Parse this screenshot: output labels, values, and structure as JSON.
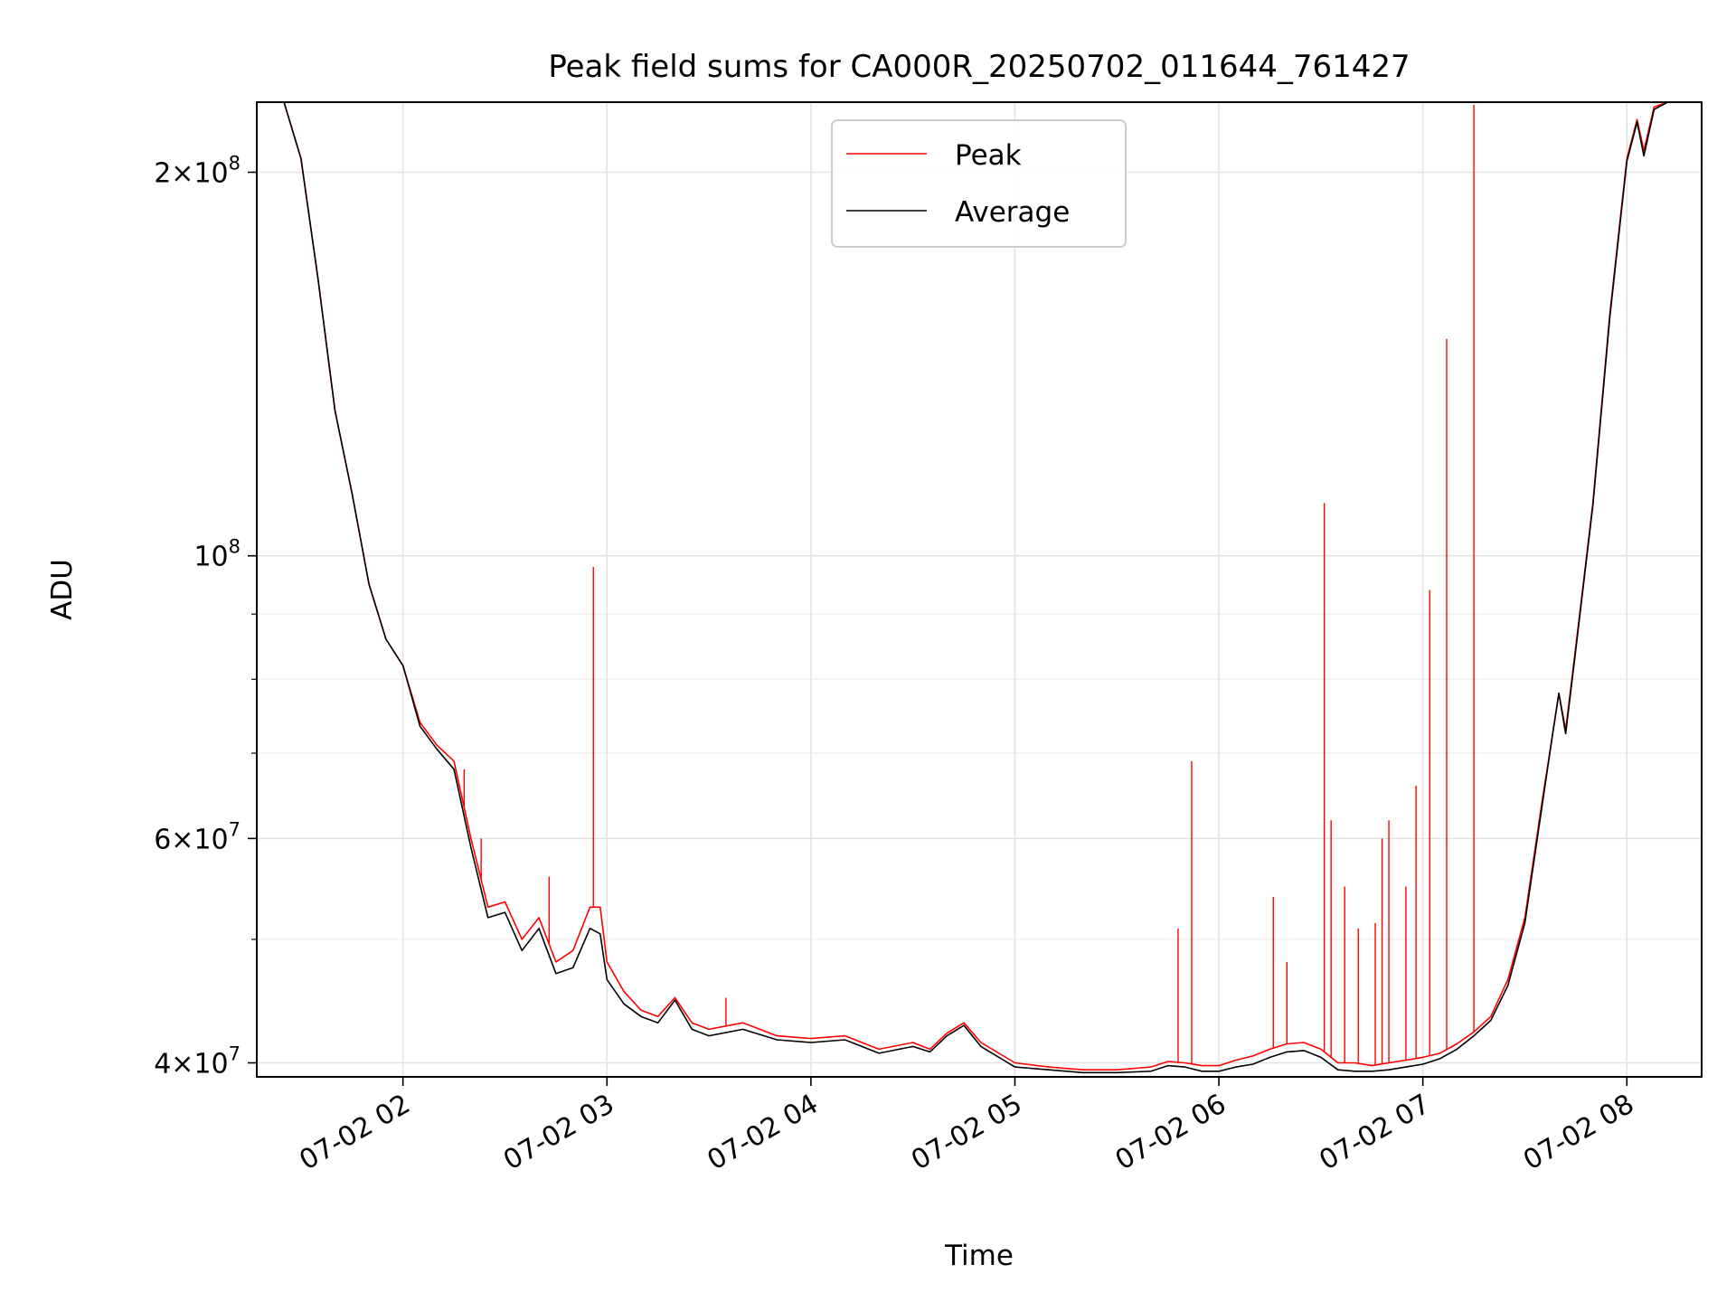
{
  "chart_data": {
    "type": "line",
    "title": "Peak field sums for CA000R_20250702_011644_761427",
    "xlabel": "Time",
    "ylabel": "ADU",
    "y_scale": "log",
    "grid": true,
    "legend_position": "upper center",
    "xlim": [
      "2025-07-02 01:17",
      "2025-07-02 08:22"
    ],
    "ylim": [
      39000000,
      227000000
    ],
    "x_ticks": [
      {
        "value": "2025-07-02 02:00",
        "label": "07-02 02"
      },
      {
        "value": "2025-07-02 03:00",
        "label": "07-02 03"
      },
      {
        "value": "2025-07-02 04:00",
        "label": "07-02 04"
      },
      {
        "value": "2025-07-02 05:00",
        "label": "07-02 05"
      },
      {
        "value": "2025-07-02 06:00",
        "label": "07-02 06"
      },
      {
        "value": "2025-07-02 07:00",
        "label": "07-02 07"
      },
      {
        "value": "2025-07-02 08:00",
        "label": "07-02 08"
      }
    ],
    "y_major_ticks": [
      {
        "value": 40000000,
        "mantissa": "4",
        "base": "10",
        "exp": "7"
      },
      {
        "value": 60000000,
        "mantissa": "6",
        "base": "10",
        "exp": "7"
      },
      {
        "value": 100000000,
        "mantissa": "",
        "base": "10",
        "exp": "8"
      },
      {
        "value": 200000000,
        "mantissa": "2",
        "base": "10",
        "exp": "8"
      }
    ],
    "y_minor_ticks": [
      50000000,
      70000000,
      80000000,
      90000000
    ],
    "series": [
      {
        "name": "Peak",
        "color": "#ff0000",
        "x": [
          "2025-07-02 01:17",
          "2025-07-02 01:25",
          "2025-07-02 01:30",
          "2025-07-02 01:35",
          "2025-07-02 01:40",
          "2025-07-02 01:45",
          "2025-07-02 01:50",
          "2025-07-02 01:55",
          "2025-07-02 02:00",
          "2025-07-02 02:05",
          "2025-07-02 02:10",
          "2025-07-02 02:15",
          "2025-07-02 02:20",
          "2025-07-02 02:25",
          "2025-07-02 02:30",
          "2025-07-02 02:35",
          "2025-07-02 02:40",
          "2025-07-02 02:45",
          "2025-07-02 02:50",
          "2025-07-02 02:55",
          "2025-07-02 02:58",
          "2025-07-02 03:00",
          "2025-07-02 03:05",
          "2025-07-02 03:10",
          "2025-07-02 03:15",
          "2025-07-02 03:20",
          "2025-07-02 03:25",
          "2025-07-02 03:30",
          "2025-07-02 03:40",
          "2025-07-02 03:50",
          "2025-07-02 04:00",
          "2025-07-02 04:10",
          "2025-07-02 04:20",
          "2025-07-02 04:30",
          "2025-07-02 04:35",
          "2025-07-02 04:40",
          "2025-07-02 04:45",
          "2025-07-02 04:50",
          "2025-07-02 05:00",
          "2025-07-02 05:10",
          "2025-07-02 05:20",
          "2025-07-02 05:30",
          "2025-07-02 05:40",
          "2025-07-02 05:45",
          "2025-07-02 05:50",
          "2025-07-02 05:55",
          "2025-07-02 06:00",
          "2025-07-02 06:05",
          "2025-07-02 06:10",
          "2025-07-02 06:15",
          "2025-07-02 06:20",
          "2025-07-02 06:25",
          "2025-07-02 06:30",
          "2025-07-02 06:35",
          "2025-07-02 06:40",
          "2025-07-02 06:45",
          "2025-07-02 06:50",
          "2025-07-02 06:55",
          "2025-07-02 07:00",
          "2025-07-02 07:05",
          "2025-07-02 07:10",
          "2025-07-02 07:15",
          "2025-07-02 07:20",
          "2025-07-02 07:25",
          "2025-07-02 07:30",
          "2025-07-02 07:35",
          "2025-07-02 07:38",
          "2025-07-02 07:40",
          "2025-07-02 07:42",
          "2025-07-02 07:45",
          "2025-07-02 07:50",
          "2025-07-02 07:55",
          "2025-07-02 08:00",
          "2025-07-02 08:03",
          "2025-07-02 08:05",
          "2025-07-02 08:08",
          "2025-07-02 08:12",
          "2025-07-02 08:22"
        ],
        "y": [
          227000000,
          227000000,
          205000000,
          165000000,
          130000000,
          112000000,
          95000000,
          86000000,
          82000000,
          74000000,
          71000000,
          69000000,
          60000000,
          53000000,
          53500000,
          50000000,
          52000000,
          48000000,
          49000000,
          53000000,
          53000000,
          48000000,
          45500000,
          44000000,
          43500000,
          45000000,
          43000000,
          42500000,
          43000000,
          42000000,
          41800000,
          42000000,
          41000000,
          41500000,
          41000000,
          42200000,
          43000000,
          41500000,
          40000000,
          39700000,
          39500000,
          39500000,
          39700000,
          40100000,
          40000000,
          39800000,
          39800000,
          40200000,
          40500000,
          41000000,
          41400000,
          41500000,
          41000000,
          40000000,
          40000000,
          39800000,
          40000000,
          40200000,
          40400000,
          40700000,
          41400000,
          42300000,
          43500000,
          46500000,
          52000000,
          64000000,
          72000000,
          78000000,
          73000000,
          85000000,
          110000000,
          155000000,
          205000000,
          220000000,
          208000000,
          225000000,
          227000000,
          227000000
        ],
        "spikes": [
          {
            "x": "2025-07-02 02:18",
            "y": 68000000
          },
          {
            "x": "2025-07-02 02:23",
            "y": 60000000
          },
          {
            "x": "2025-07-02 02:43",
            "y": 56000000
          },
          {
            "x": "2025-07-02 02:56",
            "y": 98000000
          },
          {
            "x": "2025-07-02 03:35",
            "y": 45000000
          },
          {
            "x": "2025-07-02 05:48",
            "y": 51000000
          },
          {
            "x": "2025-07-02 05:52",
            "y": 69000000
          },
          {
            "x": "2025-07-02 06:16",
            "y": 54000000
          },
          {
            "x": "2025-07-02 06:20",
            "y": 48000000
          },
          {
            "x": "2025-07-02 06:31",
            "y": 110000000
          },
          {
            "x": "2025-07-02 06:33",
            "y": 62000000
          },
          {
            "x": "2025-07-02 06:37",
            "y": 55000000
          },
          {
            "x": "2025-07-02 06:41",
            "y": 51000000
          },
          {
            "x": "2025-07-02 06:46",
            "y": 51500000
          },
          {
            "x": "2025-07-02 06:48",
            "y": 60000000
          },
          {
            "x": "2025-07-02 06:50",
            "y": 62000000
          },
          {
            "x": "2025-07-02 06:55",
            "y": 55000000
          },
          {
            "x": "2025-07-02 06:58",
            "y": 66000000
          },
          {
            "x": "2025-07-02 07:02",
            "y": 94000000
          },
          {
            "x": "2025-07-02 07:07",
            "y": 148000000
          },
          {
            "x": "2025-07-02 07:15",
            "y": 226000000
          }
        ]
      },
      {
        "name": "Average",
        "color": "#000000",
        "x": [
          "2025-07-02 01:17",
          "2025-07-02 01:25",
          "2025-07-02 01:30",
          "2025-07-02 01:35",
          "2025-07-02 01:40",
          "2025-07-02 01:45",
          "2025-07-02 01:50",
          "2025-07-02 01:55",
          "2025-07-02 02:00",
          "2025-07-02 02:05",
          "2025-07-02 02:10",
          "2025-07-02 02:15",
          "2025-07-02 02:20",
          "2025-07-02 02:25",
          "2025-07-02 02:30",
          "2025-07-02 02:35",
          "2025-07-02 02:40",
          "2025-07-02 02:45",
          "2025-07-02 02:50",
          "2025-07-02 02:55",
          "2025-07-02 02:58",
          "2025-07-02 03:00",
          "2025-07-02 03:05",
          "2025-07-02 03:10",
          "2025-07-02 03:15",
          "2025-07-02 03:20",
          "2025-07-02 03:25",
          "2025-07-02 03:30",
          "2025-07-02 03:40",
          "2025-07-02 03:50",
          "2025-07-02 04:00",
          "2025-07-02 04:10",
          "2025-07-02 04:20",
          "2025-07-02 04:30",
          "2025-07-02 04:35",
          "2025-07-02 04:40",
          "2025-07-02 04:45",
          "2025-07-02 04:50",
          "2025-07-02 05:00",
          "2025-07-02 05:10",
          "2025-07-02 05:20",
          "2025-07-02 05:30",
          "2025-07-02 05:40",
          "2025-07-02 05:45",
          "2025-07-02 05:50",
          "2025-07-02 05:55",
          "2025-07-02 06:00",
          "2025-07-02 06:05",
          "2025-07-02 06:10",
          "2025-07-02 06:15",
          "2025-07-02 06:20",
          "2025-07-02 06:25",
          "2025-07-02 06:30",
          "2025-07-02 06:35",
          "2025-07-02 06:40",
          "2025-07-02 06:45",
          "2025-07-02 06:50",
          "2025-07-02 06:55",
          "2025-07-02 07:00",
          "2025-07-02 07:05",
          "2025-07-02 07:10",
          "2025-07-02 07:15",
          "2025-07-02 07:20",
          "2025-07-02 07:25",
          "2025-07-02 07:30",
          "2025-07-02 07:35",
          "2025-07-02 07:38",
          "2025-07-02 07:40",
          "2025-07-02 07:42",
          "2025-07-02 07:45",
          "2025-07-02 07:50",
          "2025-07-02 07:55",
          "2025-07-02 08:00",
          "2025-07-02 08:03",
          "2025-07-02 08:05",
          "2025-07-02 08:08",
          "2025-07-02 08:12",
          "2025-07-02 08:22"
        ],
        "y": [
          227000000,
          227000000,
          205000000,
          165000000,
          130000000,
          112000000,
          95000000,
          86000000,
          82000000,
          73500000,
          70500000,
          68000000,
          59000000,
          52000000,
          52500000,
          49000000,
          51000000,
          47000000,
          47500000,
          51000000,
          50500000,
          46500000,
          44500000,
          43500000,
          43000000,
          44800000,
          42500000,
          42000000,
          42500000,
          41700000,
          41500000,
          41700000,
          40700000,
          41200000,
          40800000,
          42000000,
          42800000,
          41200000,
          39700000,
          39500000,
          39300000,
          39300000,
          39400000,
          39800000,
          39700000,
          39400000,
          39400000,
          39700000,
          39900000,
          40400000,
          40800000,
          40900000,
          40400000,
          39500000,
          39400000,
          39400000,
          39500000,
          39700000,
          39900000,
          40300000,
          41000000,
          42000000,
          43200000,
          46000000,
          51500000,
          63500000,
          72000000,
          78000000,
          72500000,
          84500000,
          109500000,
          154000000,
          204000000,
          219000000,
          206000000,
          224000000,
          227000000,
          227000000
        ]
      }
    ]
  }
}
